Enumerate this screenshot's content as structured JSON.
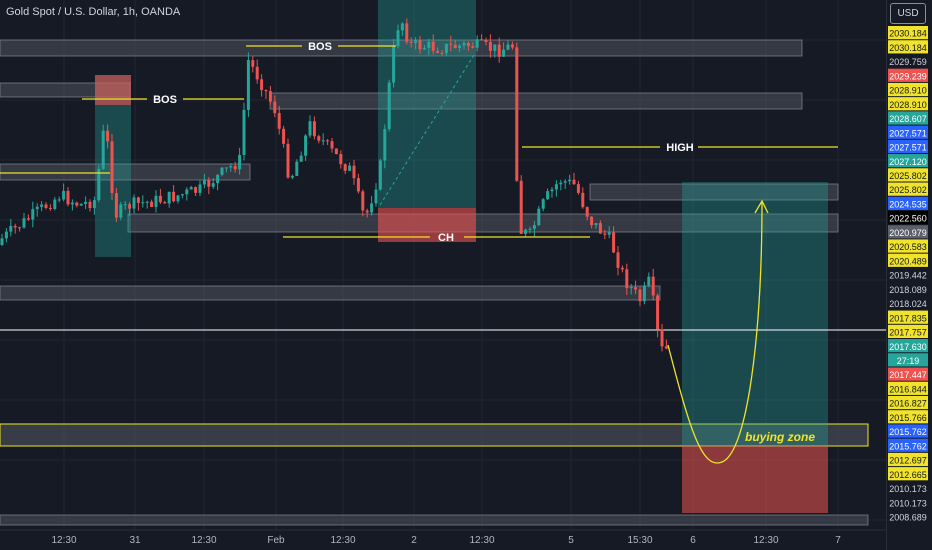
{
  "header": {
    "symbol_title": "Gold Spot / U.S. Dollar, 1h, OANDA",
    "currency_label": "USD"
  },
  "chart_data": {
    "type": "candlestick",
    "price_range": [
      2007.6,
      2031.3
    ],
    "x_ticks": [
      "12:30",
      "31",
      "12:30",
      "Feb",
      "12:30",
      "2",
      "12:30",
      "5",
      "15:30",
      "6",
      "12:30",
      "7"
    ],
    "price_labels": [
      {
        "value": "2030.184",
        "style": "yellow"
      },
      {
        "value": "2030.184",
        "style": "yellow"
      },
      {
        "value": "2029.759",
        "style": "white"
      },
      {
        "value": "2029.239",
        "style": "red"
      },
      {
        "value": "2028.910",
        "style": "yellow"
      },
      {
        "value": "2028.910",
        "style": "yellow"
      },
      {
        "value": "2028.607",
        "style": "teal"
      },
      {
        "value": "2027.571",
        "style": "blue"
      },
      {
        "value": "2027.571",
        "style": "blue"
      },
      {
        "value": "2027.120",
        "style": "teal"
      },
      {
        "value": "2025.802",
        "style": "yellow"
      },
      {
        "value": "2025.802",
        "style": "yellow"
      },
      {
        "value": "2024.535",
        "style": "blue"
      },
      {
        "value": "2022.560",
        "style": "black"
      },
      {
        "value": "2020.979",
        "style": "gray"
      },
      {
        "value": "2020.583",
        "style": "yellow"
      },
      {
        "value": "2020.489",
        "style": "yellow"
      },
      {
        "value": "2019.442",
        "style": "white"
      },
      {
        "value": "2018.089",
        "style": "white"
      },
      {
        "value": "2018.024",
        "style": "white"
      },
      {
        "value": "2017.835",
        "style": "yellow"
      },
      {
        "value": "2017.757",
        "style": "yellow"
      },
      {
        "value": "2017.630",
        "style": "teal"
      },
      {
        "value": "27:19",
        "style": "teal"
      },
      {
        "value": "2017.447",
        "style": "red"
      },
      {
        "value": "2016.844",
        "style": "yellow"
      },
      {
        "value": "2016.827",
        "style": "yellow"
      },
      {
        "value": "2015.766",
        "style": "yellow"
      },
      {
        "value": "2015.762",
        "style": "blue"
      },
      {
        "value": "2015.762",
        "style": "blue"
      },
      {
        "value": "2012.697",
        "style": "yellow"
      },
      {
        "value": "2012.665",
        "style": "yellow"
      },
      {
        "value": "2010.173",
        "style": "white"
      },
      {
        "value": "2010.173",
        "style": "white"
      },
      {
        "value": "2008.689",
        "style": "white"
      }
    ],
    "annotations": [
      {
        "text": "BOS",
        "kind": "label"
      },
      {
        "text": "BOS",
        "kind": "label"
      },
      {
        "text": "HIGH",
        "kind": "label"
      },
      {
        "text": "CH",
        "kind": "label"
      },
      {
        "text": "buying zone",
        "kind": "label"
      }
    ],
    "colors": {
      "up": "#26a69a",
      "down": "#ef5350",
      "annotation": "#f0e32a",
      "zone_green": "#1f6b5e",
      "zone_red": "#8a2a33"
    }
  }
}
